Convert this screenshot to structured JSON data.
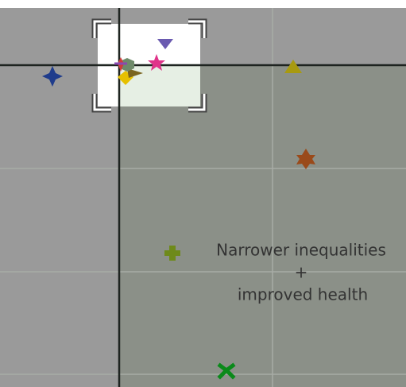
{
  "annotation": {
    "lines": [
      "Narrower inequalities",
      "+",
      "improved health"
    ]
  }
}
